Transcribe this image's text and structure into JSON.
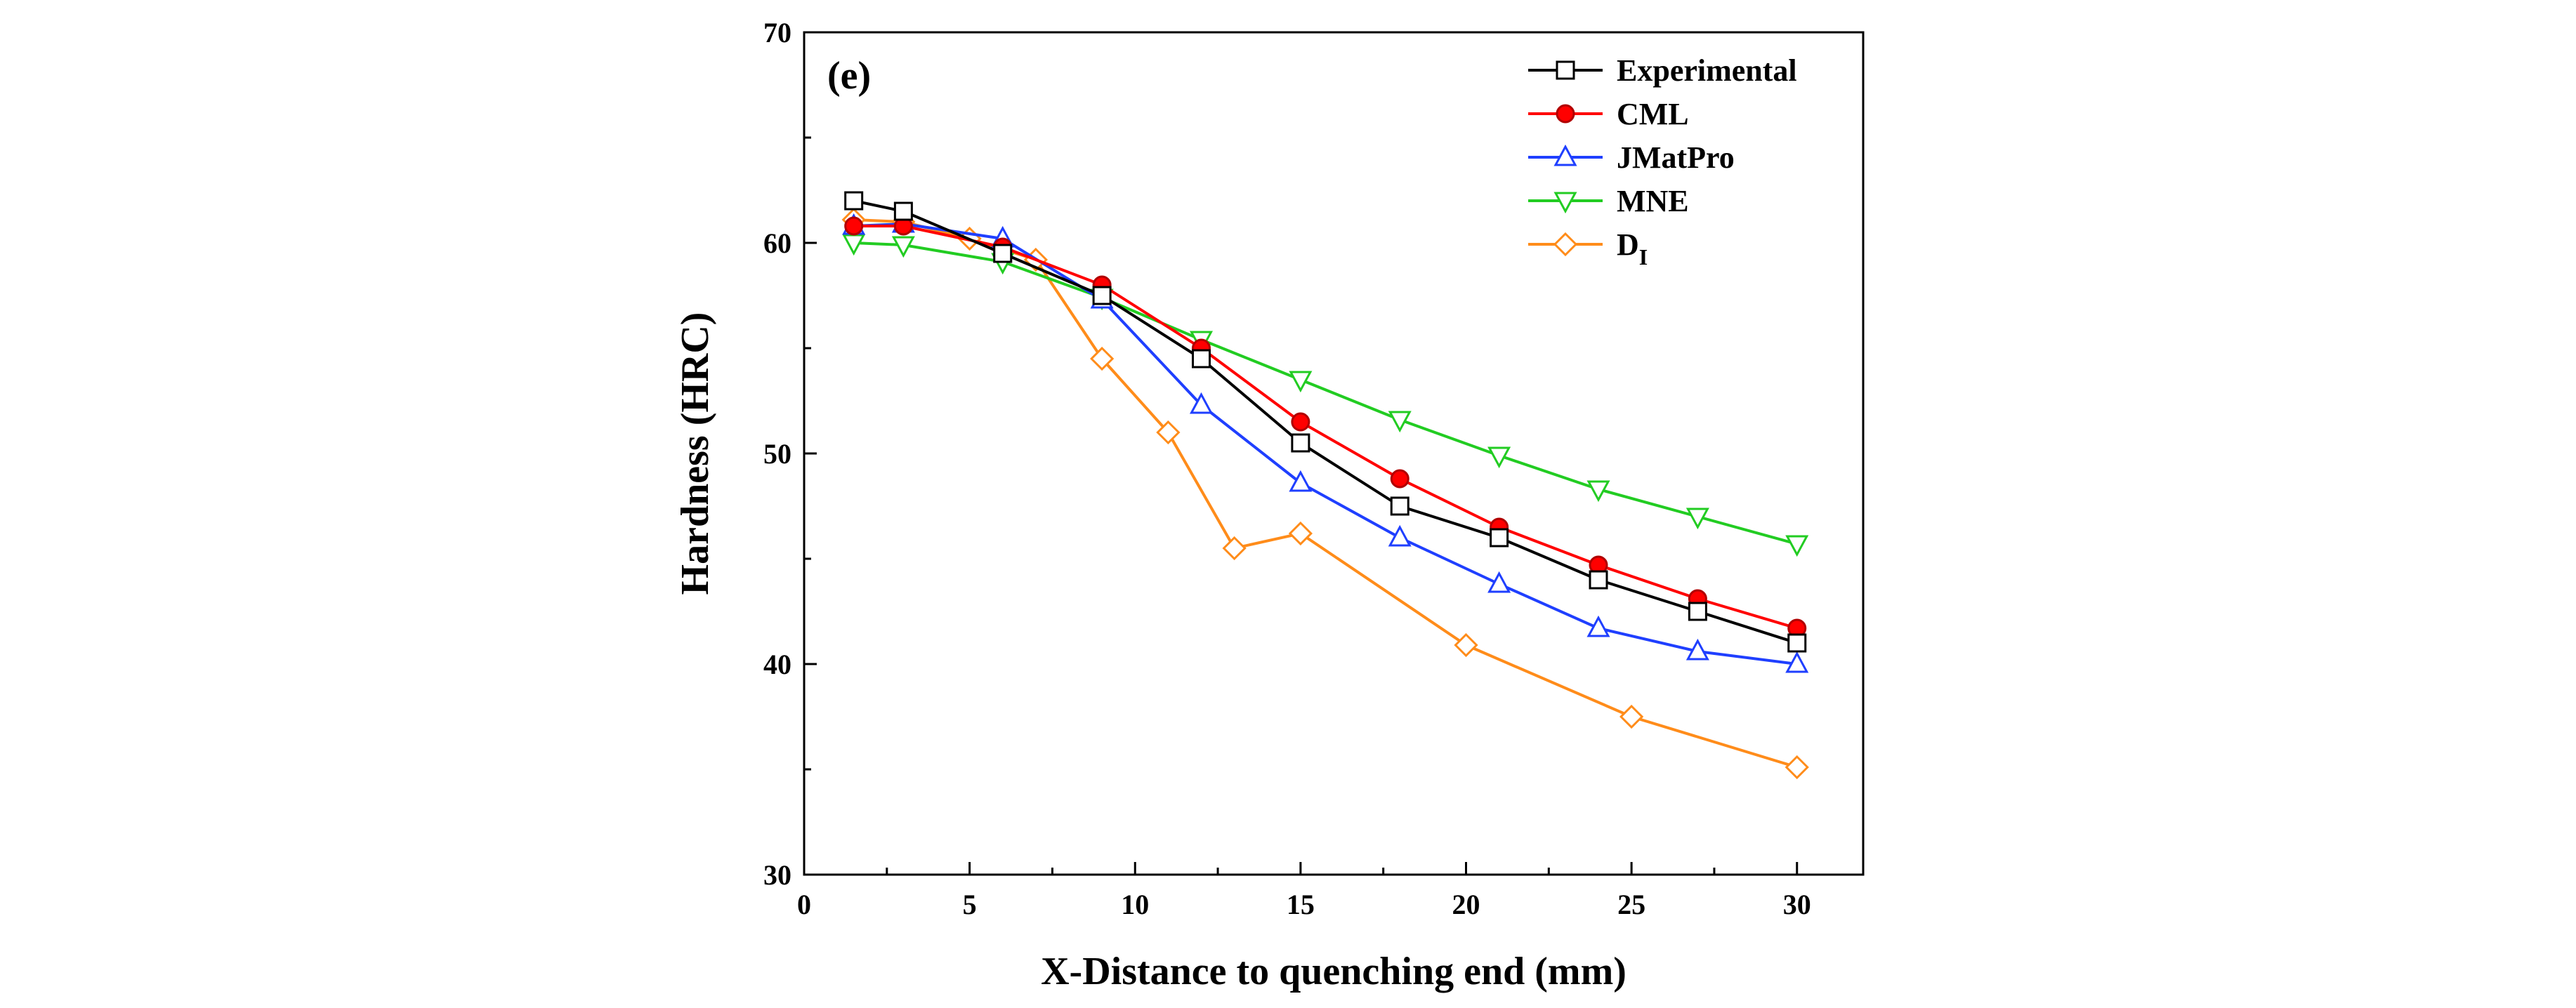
{
  "chart_data": {
    "type": "line",
    "panel_label": "(e)",
    "title": "",
    "xlabel": "X-Distance to quenching end (mm)",
    "ylabel": "Hardness (HRC)",
    "xlim": [
      0,
      32
    ],
    "ylim": [
      30,
      70
    ],
    "xticks": [
      0,
      5,
      10,
      15,
      20,
      25,
      30
    ],
    "yticks": [
      30,
      40,
      50,
      60,
      70
    ],
    "legend_position": "top-right",
    "series": [
      {
        "name": "Experimental",
        "color": "#000000",
        "marker": "square",
        "x": [
          1.5,
          3,
          6,
          9,
          12,
          15,
          18,
          21,
          24,
          27,
          30
        ],
        "y": [
          62.0,
          61.5,
          59.5,
          57.5,
          54.5,
          50.5,
          47.5,
          46.0,
          44.0,
          42.5,
          41.0
        ]
      },
      {
        "name": "CML",
        "color": "#ff0000",
        "marker": "filled-circle",
        "x": [
          1.5,
          3,
          6,
          9,
          12,
          15,
          18,
          21,
          24,
          27,
          30
        ],
        "y": [
          60.8,
          60.8,
          59.8,
          58.0,
          55.0,
          51.5,
          48.8,
          46.5,
          44.7,
          43.1,
          41.7
        ]
      },
      {
        "name": "JMatPro",
        "color": "#1f3fff",
        "marker": "triangle-up",
        "x": [
          1.5,
          3,
          6,
          9,
          12,
          15,
          18,
          21,
          24,
          27,
          30
        ],
        "y": [
          60.8,
          60.9,
          60.2,
          57.3,
          52.3,
          48.6,
          46.0,
          43.8,
          41.7,
          40.6,
          40.0
        ]
      },
      {
        "name": "MNE",
        "color": "#22cc22",
        "marker": "triangle-down",
        "x": [
          1.5,
          3,
          6,
          9,
          12,
          15,
          18,
          21,
          24,
          27,
          30
        ],
        "y": [
          60.0,
          59.9,
          59.1,
          57.4,
          55.4,
          53.5,
          51.6,
          49.9,
          48.3,
          47.0,
          45.7
        ]
      },
      {
        "name": "D",
        "name_subscript": "I",
        "color": "#ff8c1a",
        "marker": "diamond",
        "x": [
          1.5,
          3,
          5,
          7,
          9,
          11,
          13,
          15,
          20,
          25,
          30
        ],
        "y": [
          61.1,
          61.0,
          60.2,
          59.2,
          54.5,
          51.0,
          45.5,
          46.2,
          40.9,
          37.5,
          35.1
        ]
      }
    ]
  }
}
